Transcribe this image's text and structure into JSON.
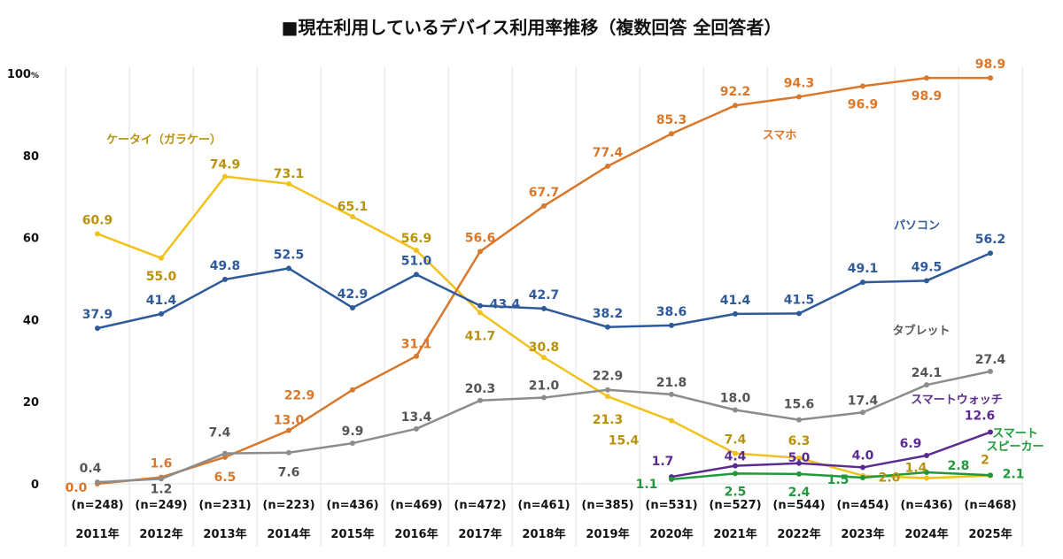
{
  "chart_data": {
    "type": "line",
    "title": "■現在利用しているデバイス利用率推移（複数回答 全回答者）",
    "ylim": [
      0,
      100
    ],
    "yticks": [
      0,
      20,
      40,
      60,
      80,
      100
    ],
    "y_unit": "%",
    "grid": "vertical",
    "categories": [
      "2011年",
      "2012年",
      "2013年",
      "2014年",
      "2015年",
      "2016年",
      "2017年",
      "2018年",
      "2019年",
      "2020年",
      "2021年",
      "2022年",
      "2023年",
      "2024年",
      "2025年"
    ],
    "sample_sizes": [
      "(n=248)",
      "(n=249)",
      "(n=231)",
      "(n=223)",
      "(n=436)",
      "(n=469)",
      "(n=472)",
      "(n=461)",
      "(n=385)",
      "(n=531)",
      "(n=527)",
      "(n=544)",
      "(n=454)",
      "(n=436)",
      "(n=468)"
    ],
    "series": [
      {
        "name": "ケータイ（ガラケー）",
        "color": "#f2c21b",
        "label_color": "#b8920c",
        "values": [
          60.9,
          55.0,
          74.9,
          73.1,
          65.1,
          56.9,
          41.7,
          30.8,
          21.3,
          15.4,
          7.4,
          6.3,
          2.0,
          1.4,
          2
        ],
        "labels": [
          "60.9",
          "55.0",
          "74.9",
          "73.1",
          "65.1",
          "56.9",
          "41.7",
          "30.8",
          "21.3",
          "15.4",
          "7.4",
          "6.3",
          "2.0",
          "1.4",
          "2"
        ]
      },
      {
        "name": "スマホ",
        "color": "#d9772a",
        "label_color": "#d9772a",
        "values": [
          0.0,
          1.6,
          6.5,
          13.0,
          22.9,
          31.1,
          56.6,
          67.7,
          77.4,
          85.3,
          92.2,
          94.3,
          96.9,
          98.9,
          98.9
        ],
        "labels": [
          "0.0",
          "1.6",
          "6.5",
          "13.0",
          "22.9",
          "31.1",
          "56.6",
          "67.7",
          "77.4",
          "85.3",
          "92.2",
          "94.3",
          "96.9",
          "98.9",
          "98.9"
        ]
      },
      {
        "name": "パソコン",
        "color": "#2f5a9a",
        "label_color": "#2f5a9a",
        "values": [
          37.9,
          41.4,
          49.8,
          52.5,
          42.9,
          51.0,
          43.4,
          42.7,
          38.2,
          38.6,
          41.4,
          41.5,
          49.1,
          49.5,
          56.2
        ],
        "labels": [
          "37.9",
          "41.4",
          "49.8",
          "52.5",
          "42.9",
          "51.0",
          "43.4",
          "42.7",
          "38.2",
          "38.6",
          "41.4",
          "41.5",
          "49.1",
          "49.5",
          "56.2"
        ]
      },
      {
        "name": "タブレット",
        "color": "#8c8c8c",
        "label_color": "#555555",
        "values": [
          0.4,
          1.2,
          7.4,
          7.6,
          9.9,
          13.4,
          20.3,
          21.0,
          22.9,
          21.8,
          18.0,
          15.6,
          17.4,
          24.1,
          27.4
        ],
        "labels": [
          "0.4",
          "1.2",
          "7.4",
          "7.6",
          "9.9",
          "13.4",
          "20.3",
          "21.0",
          "22.9",
          "21.8",
          "18.0",
          "15.6",
          "17.4",
          "24.1",
          "27.4"
        ]
      },
      {
        "name": "スマートウォッチ",
        "color": "#5b2c8f",
        "label_color": "#5b2c8f",
        "values": [
          null,
          null,
          null,
          null,
          null,
          null,
          null,
          null,
          null,
          1.7,
          4.4,
          5.0,
          4.0,
          6.9,
          12.6
        ],
        "labels": [
          "",
          "",
          "",
          "",
          "",
          "",
          "",
          "",
          "",
          "1.7",
          "4.4",
          "5.0",
          "4.0",
          "6.9",
          "12.6"
        ]
      },
      {
        "name": "スマートスピーカー",
        "name_lines": [
          "スマート",
          "スピーカー"
        ],
        "color": "#1f9a3a",
        "label_color": "#1f9a3a",
        "values": [
          null,
          null,
          null,
          null,
          null,
          null,
          null,
          null,
          null,
          1.1,
          2.5,
          2.4,
          1.5,
          2.8,
          2.1
        ],
        "labels": [
          "",
          "",
          "",
          "",
          "",
          "",
          "",
          "",
          "",
          "1.1",
          "2.5",
          "2.4",
          "1.5",
          "2.8",
          "2.1"
        ]
      }
    ]
  }
}
